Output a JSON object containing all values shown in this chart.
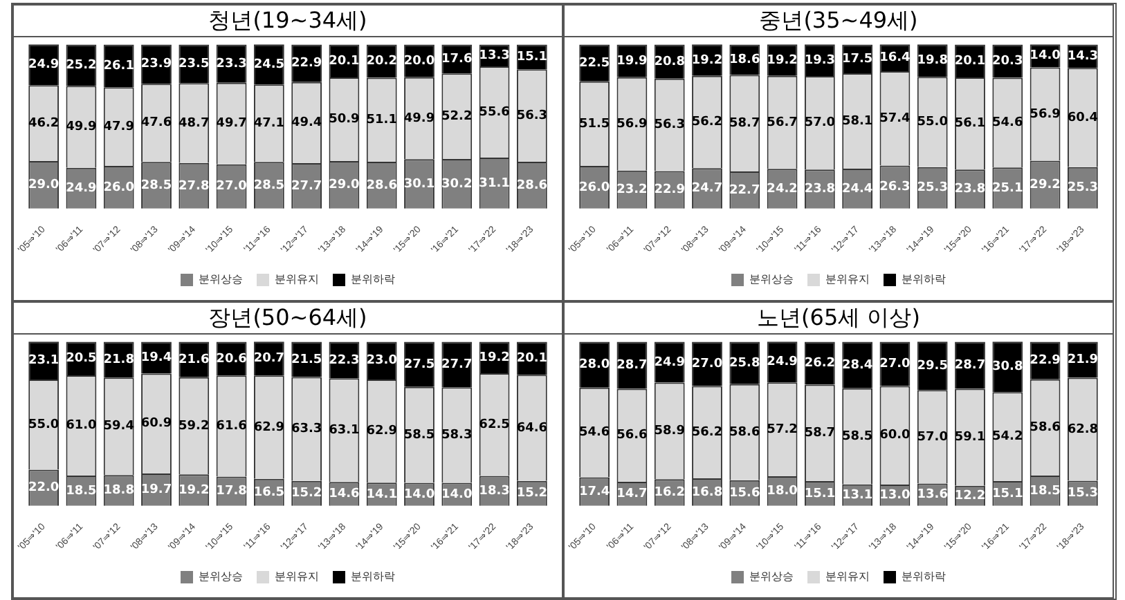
{
  "chart_data": [
    {
      "type": "bar",
      "title": "청년(19~34세)",
      "stacked": true,
      "legend": "bottom",
      "tick_labels": "x",
      "grid": false,
      "ylim": [
        0,
        101
      ],
      "categories": [
        "'05⇒'10",
        "'06⇒'11",
        "'07⇒'12",
        "'08⇒'13",
        "'09⇒'14",
        "'10⇒'15",
        "'11⇒'16",
        "'12⇒'17",
        "'13⇒'18",
        "'14⇒'19",
        "'15⇒'20",
        "'16⇒'21",
        "'17⇒'22",
        "'18⇒'23"
      ],
      "series": [
        {
          "name": "분위상승",
          "color": "#808080",
          "values": [
            29.0,
            24.9,
            26.0,
            28.5,
            27.8,
            27.0,
            28.5,
            27.7,
            29.0,
            28.6,
            30.1,
            30.2,
            31.1,
            28.6
          ],
          "value_labels": [
            "29.0",
            "24.9",
            "26.0",
            "28.5",
            "27.8",
            "27.0",
            "28.5",
            "27.7",
            "29.0",
            "28.6",
            "30.1",
            "30.2",
            "31.1",
            "28.6"
          ]
        },
        {
          "name": "분위유지",
          "color": "#d9d9d9",
          "values": [
            46.2,
            49.9,
            47.9,
            47.6,
            48.7,
            49.7,
            47.1,
            49.4,
            50.9,
            51.1,
            49.9,
            52.2,
            55.6,
            56.3
          ],
          "value_labels": [
            "46.2",
            "49.9",
            "47.9",
            "47.6",
            "48.7",
            "49.7",
            "47.1",
            "49.4",
            "50.9",
            "51.1",
            "49.9",
            "52.2",
            "55.6",
            "56.3"
          ]
        },
        {
          "name": "분위하락",
          "color": "#000000",
          "values": [
            24.9,
            25.2,
            26.1,
            23.9,
            23.5,
            23.3,
            24.5,
            22.9,
            20.1,
            20.2,
            20.0,
            17.6,
            13.3,
            15.1
          ],
          "value_labels": [
            "24.9",
            "25.2",
            "26.1",
            "23.9",
            "23.5",
            "23.3",
            "24.5",
            "22.9",
            "20.1",
            "20.2",
            "20.0",
            "17.6",
            "13.3",
            "15.1"
          ]
        }
      ]
    },
    {
      "type": "bar",
      "title": "중년(35~49세)",
      "stacked": true,
      "legend": "bottom",
      "tick_labels": "x",
      "grid": false,
      "ylim": [
        0,
        101
      ],
      "categories": [
        "'05⇒'10",
        "'06⇒'11",
        "'07⇒'12",
        "'08⇒'13",
        "'09⇒'14",
        "'10⇒'15",
        "'11⇒'16",
        "'12⇒'17",
        "'13⇒'18",
        "'14⇒'19",
        "'15⇒'20",
        "'16⇒'21",
        "'17⇒'22",
        "'18⇒'23"
      ],
      "series": [
        {
          "name": "분위상승",
          "color": "#808080",
          "values": [
            26.0,
            23.2,
            22.9,
            24.7,
            22.7,
            24.2,
            23.8,
            24.4,
            26.3,
            25.3,
            23.8,
            25.1,
            29.2,
            25.3
          ],
          "value_labels": [
            "26.0",
            "23.2",
            "22.9",
            "24.7",
            "22.7",
            "24.2",
            "23.8",
            "24.4",
            "26.3",
            "25.3",
            "23.8",
            "25.1",
            "29.2",
            "25.3"
          ]
        },
        {
          "name": "분위유지",
          "color": "#d9d9d9",
          "values": [
            51.5,
            56.9,
            56.3,
            56.2,
            58.7,
            56.7,
            57.0,
            58.1,
            57.4,
            55.0,
            56.1,
            54.6,
            56.9,
            60.4
          ],
          "value_labels": [
            "51.5",
            "56.9",
            "56.3",
            "56.2",
            "58.7",
            "56.7",
            "57.0",
            "58.1",
            "57.4",
            "55.0",
            "56.1",
            "54.6",
            "56.9",
            "60.4"
          ]
        },
        {
          "name": "분위하락",
          "color": "#000000",
          "values": [
            22.5,
            19.9,
            20.8,
            19.2,
            18.6,
            19.2,
            19.3,
            17.5,
            16.4,
            19.8,
            20.1,
            20.3,
            14.0,
            14.3
          ],
          "value_labels": [
            "22.5",
            "19.9",
            "20.8",
            "19.2",
            "18.6",
            "19.2",
            "19.3",
            "17.5",
            "16.4",
            "19.8",
            "20.1",
            "20.3",
            "14.0",
            "14.3"
          ]
        }
      ]
    },
    {
      "type": "bar",
      "title": "장년(50~64세)",
      "stacked": true,
      "legend": "bottom",
      "tick_labels": "x",
      "grid": false,
      "ylim": [
        0,
        101
      ],
      "categories": [
        "'05⇒'10",
        "'06⇒'11",
        "'07⇒'12",
        "'08⇒'13",
        "'09⇒'14",
        "'10⇒'15",
        "'11⇒'16",
        "'12⇒'17",
        "'13⇒'18",
        "'14⇒'19",
        "'15⇒'20",
        "'16⇒'21",
        "'17⇒'22",
        "'18⇒'23"
      ],
      "series": [
        {
          "name": "분위상승",
          "color": "#808080",
          "values": [
            22.0,
            18.5,
            18.8,
            19.7,
            19.2,
            17.8,
            16.5,
            15.2,
            14.6,
            14.1,
            14.0,
            14.0,
            18.3,
            15.2
          ],
          "value_labels": [
            "22.0",
            "18.5",
            "18.8",
            "19.7",
            "19.2",
            "17.8",
            "16.5",
            "15.2",
            "14.6",
            "14.1",
            "14.0",
            "14.0",
            "18.3",
            "15.2"
          ]
        },
        {
          "name": "분위유지",
          "color": "#d9d9d9",
          "values": [
            55.0,
            61.0,
            59.4,
            60.9,
            59.2,
            61.6,
            62.9,
            63.3,
            63.1,
            62.9,
            58.5,
            58.3,
            62.5,
            64.6
          ],
          "value_labels": [
            "55.0",
            "61.0",
            "59.4",
            "60.9",
            "59.2",
            "61.6",
            "62.9",
            "63.3",
            "63.1",
            "62.9",
            "58.5",
            "58.3",
            "62.5",
            "64.6"
          ]
        },
        {
          "name": "분위하락",
          "color": "#000000",
          "values": [
            23.1,
            20.5,
            21.8,
            19.4,
            21.6,
            20.6,
            20.7,
            21.5,
            22.3,
            23.0,
            27.5,
            27.7,
            19.2,
            20.1
          ],
          "value_labels": [
            "23.1",
            "20.5",
            "21.8",
            "19.4",
            "21.6",
            "20.6",
            "20.7",
            "21.5",
            "22.3",
            "23.0",
            "27.5",
            "27.7",
            "19.2",
            "20.1"
          ]
        }
      ]
    },
    {
      "type": "bar",
      "title": "노년(65세 이상)",
      "stacked": true,
      "legend": "bottom",
      "tick_labels": "x",
      "grid": false,
      "ylim": [
        0,
        101
      ],
      "categories": [
        "'05⇒'10",
        "'06⇒'11",
        "'07⇒'12",
        "'08⇒'13",
        "'09⇒'14",
        "'10⇒'15",
        "'11⇒'16",
        "'12⇒'17",
        "'13⇒'18",
        "'14⇒'19",
        "'15⇒'20",
        "'16⇒'21",
        "'17⇒'22",
        "'18⇒'23"
      ],
      "series": [
        {
          "name": "분위상승",
          "color": "#808080",
          "values": [
            17.4,
            14.7,
            16.2,
            16.8,
            15.6,
            18.0,
            15.1,
            13.1,
            13.0,
            13.6,
            12.2,
            15.1,
            18.5,
            15.3
          ],
          "value_labels": [
            "17.4",
            "14.7",
            "16.2",
            "16.8",
            "15.6",
            "18.0",
            "15.1",
            "13.1",
            "13.0",
            "13.6",
            "12.2",
            "15.1",
            "18.5",
            "15.3"
          ]
        },
        {
          "name": "분위유지",
          "color": "#d9d9d9",
          "values": [
            54.6,
            56.6,
            58.9,
            56.2,
            58.6,
            57.2,
            58.7,
            58.5,
            60.0,
            57.0,
            59.1,
            54.2,
            58.6,
            62.8
          ],
          "value_labels": [
            "54.6",
            "56.6",
            "58.9",
            "56.2",
            "58.6",
            "57.2",
            "58.7",
            "58.5",
            "60.0",
            "57.0",
            "59.1",
            "54.2",
            "58.6",
            "62.8"
          ]
        },
        {
          "name": "분위하락",
          "color": "#000000",
          "values": [
            28.0,
            28.7,
            24.9,
            27.0,
            25.8,
            24.9,
            26.2,
            28.4,
            27.0,
            29.5,
            28.7,
            30.8,
            22.9,
            21.9
          ],
          "value_labels": [
            "28.0",
            "28.7",
            "24.9",
            "27.0",
            "25.8",
            "24.9",
            "26.2",
            "28.4",
            "27.0",
            "29.5",
            "28.7",
            "30.8",
            "22.9",
            "21.9"
          ]
        }
      ]
    }
  ]
}
